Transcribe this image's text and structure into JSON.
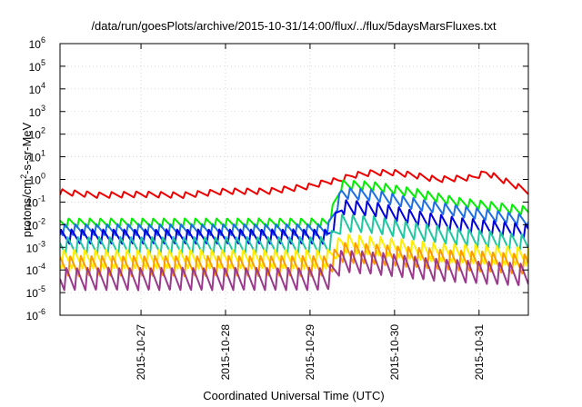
{
  "chart_data": {
    "type": "line",
    "title": "/data/run/goesPlots/archive/2015-10-31/14:00/flux/../flux/5daysMarsFluxes.txt",
    "xlabel": "Coordinated Universal Time (UTC)",
    "ylabel": {
      "prefix": "protons/cm",
      "superscript": "2",
      "suffix": "-s-sr-MeV"
    },
    "x_range": [
      "2015-10-26T01:00",
      "2015-10-31T14:00"
    ],
    "x_ticks": [
      "2015-10-27",
      "2015-10-28",
      "2015-10-29",
      "2015-10-30",
      "2015-10-31"
    ],
    "y_scale": "log",
    "y_range": [
      1e-06,
      1000000.0
    ],
    "y_ticks": [
      {
        "base": "10",
        "exp": "-6"
      },
      {
        "base": "10",
        "exp": "-5"
      },
      {
        "base": "10",
        "exp": "-4"
      },
      {
        "base": "10",
        "exp": "-3"
      },
      {
        "base": "10",
        "exp": "-2"
      },
      {
        "base": "10",
        "exp": "-1"
      },
      {
        "base": "10",
        "exp": "0"
      },
      {
        "base": "10",
        "exp": "1"
      },
      {
        "base": "10",
        "exp": "2"
      },
      {
        "base": "10",
        "exp": "3"
      },
      {
        "base": "10",
        "exp": "4"
      },
      {
        "base": "10",
        "exp": "5"
      },
      {
        "base": "10",
        "exp": "6"
      }
    ],
    "grid": true,
    "legend": "none",
    "series": [
      {
        "color": "#ee0000",
        "width": 2,
        "shape": "saw",
        "period_hours": 3.5,
        "points": [
          [
            "2015-10-26T01:00",
            0.28
          ],
          [
            "2015-10-26T12:00",
            0.2
          ],
          [
            "2015-10-27T00:00",
            0.22
          ],
          [
            "2015-10-27T12:00",
            0.2
          ],
          [
            "2015-10-28T00:00",
            0.3
          ],
          [
            "2015-10-28T12:00",
            0.3
          ],
          [
            "2015-10-29T00:00",
            0.5
          ],
          [
            "2015-10-29T05:00",
            0.8
          ],
          [
            "2015-10-29T08:00",
            0.9
          ],
          [
            "2015-10-29T12:00",
            1.5
          ],
          [
            "2015-10-29T18:00",
            2.0
          ],
          [
            "2015-10-30T00:00",
            2.0
          ],
          [
            "2015-10-30T06:00",
            1.5
          ],
          [
            "2015-10-30T12:00",
            1.0
          ],
          [
            "2015-10-30T22:00",
            1.2
          ],
          [
            "2015-10-31T02:00",
            2.0
          ],
          [
            "2015-10-31T14:00",
            0.3
          ]
        ],
        "amp": 0.13
      },
      {
        "color": "#00ee00",
        "width": 2,
        "shape": "saw",
        "period_hours": 3.0,
        "points": [
          [
            "2015-10-26T01:00",
            0.012
          ],
          [
            "2015-10-29T05:00",
            0.012
          ],
          [
            "2015-10-29T09:00",
            0.6
          ],
          [
            "2015-10-29T18:00",
            0.5
          ],
          [
            "2015-10-30T06:00",
            0.25
          ],
          [
            "2015-10-30T18:00",
            0.1
          ],
          [
            "2015-10-31T14:00",
            0.04
          ]
        ],
        "amp": 0.2
      },
      {
        "color": "#1e6fe6",
        "width": 2,
        "shape": "saw",
        "period_hours": 3.0,
        "points": [
          [
            "2015-10-26T01:00",
            0.006
          ],
          [
            "2015-10-29T05:00",
            0.006
          ],
          [
            "2015-10-29T09:00",
            0.25
          ],
          [
            "2015-10-29T18:00",
            0.2
          ],
          [
            "2015-10-30T06:00",
            0.08
          ],
          [
            "2015-10-30T18:00",
            0.04
          ],
          [
            "2015-10-31T14:00",
            0.015
          ]
        ],
        "amp": 0.25
      },
      {
        "color": "#0000dd",
        "width": 2,
        "shape": "saw",
        "period_hours": 3.0,
        "points": [
          [
            "2015-10-26T01:00",
            0.003
          ],
          [
            "2015-10-29T05:00",
            0.003
          ],
          [
            "2015-10-29T09:00",
            0.06
          ],
          [
            "2015-10-29T18:00",
            0.05
          ],
          [
            "2015-10-30T06:00",
            0.02
          ],
          [
            "2015-10-30T18:00",
            0.01
          ],
          [
            "2015-10-31T14:00",
            0.005
          ]
        ],
        "amp": 0.32
      },
      {
        "color": "#20c8a0",
        "width": 2,
        "shape": "saw",
        "period_hours": 3.0,
        "points": [
          [
            "2015-10-26T01:00",
            0.0012
          ],
          [
            "2015-10-29T05:00",
            0.0012
          ],
          [
            "2015-10-29T09:00",
            0.012
          ],
          [
            "2015-10-29T18:00",
            0.01
          ],
          [
            "2015-10-30T06:00",
            0.005
          ],
          [
            "2015-10-30T18:00",
            0.003
          ],
          [
            "2015-10-31T14:00",
            0.0015
          ]
        ],
        "amp": 0.38
      },
      {
        "color": "#ffee00",
        "width": 2,
        "shape": "saw",
        "period_hours": 3.0,
        "points": [
          [
            "2015-10-26T01:00",
            0.0003
          ],
          [
            "2015-10-29T05:00",
            0.0003
          ],
          [
            "2015-10-29T09:00",
            0.0015
          ],
          [
            "2015-10-29T18:00",
            0.0012
          ],
          [
            "2015-10-30T12:00",
            0.0006
          ],
          [
            "2015-10-31T14:00",
            0.0004
          ]
        ],
        "amp": 0.42
      },
      {
        "color": "#ff9900",
        "width": 2,
        "shape": "saw",
        "period_hours": 3.0,
        "points": [
          [
            "2015-10-26T01:00",
            0.00015
          ],
          [
            "2015-10-29T05:00",
            0.00015
          ],
          [
            "2015-10-29T09:00",
            0.0006
          ],
          [
            "2015-10-29T18:00",
            0.0005
          ],
          [
            "2015-10-30T12:00",
            0.0003
          ],
          [
            "2015-10-31T14:00",
            0.00018
          ]
        ],
        "amp": 0.45
      },
      {
        "color": "#9b3a8c",
        "width": 2,
        "shape": "saw",
        "period_hours": 3.0,
        "points": [
          [
            "2015-10-26T01:00",
            4e-05
          ],
          [
            "2015-10-29T05:00",
            4e-05
          ],
          [
            "2015-10-29T09:00",
            0.00025
          ],
          [
            "2015-10-29T18:00",
            0.0002
          ],
          [
            "2015-10-30T12:00",
            0.0001
          ],
          [
            "2015-10-31T14:00",
            6e-05
          ]
        ],
        "amp": 0.5
      }
    ]
  }
}
